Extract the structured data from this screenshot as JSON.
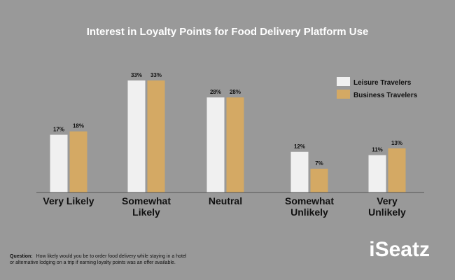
{
  "chart_data": {
    "type": "bar",
    "title": "Interest in Loyalty Points for Food Delivery Platform Use",
    "categories": [
      [
        "Very Likely"
      ],
      [
        "Somewhat",
        "Likely"
      ],
      [
        "Neutral"
      ],
      [
        "Somewhat",
        "Unlikely"
      ],
      [
        "Very",
        "Unlikely"
      ]
    ],
    "series": [
      {
        "name": "Leisure Travelers",
        "values": [
          17,
          33,
          28,
          12,
          11
        ],
        "color": "#f0f0f0"
      },
      {
        "name": "Business Travelers",
        "values": [
          18,
          33,
          28,
          7,
          13
        ],
        "color": "#d4a964"
      }
    ],
    "value_suffix": "%",
    "ylim": [
      0,
      35
    ],
    "legend": "top-right",
    "grid": false
  },
  "footnote": {
    "label": "Question:",
    "lines": [
      "How likely would you be to order food delivery while staying in a hotel",
      "or alternative lodging on a trip if earning loyalty points was an offer available."
    ]
  },
  "logo_text": "iSeatz",
  "colors": {
    "background": "#999999",
    "baseline": "#555555"
  }
}
